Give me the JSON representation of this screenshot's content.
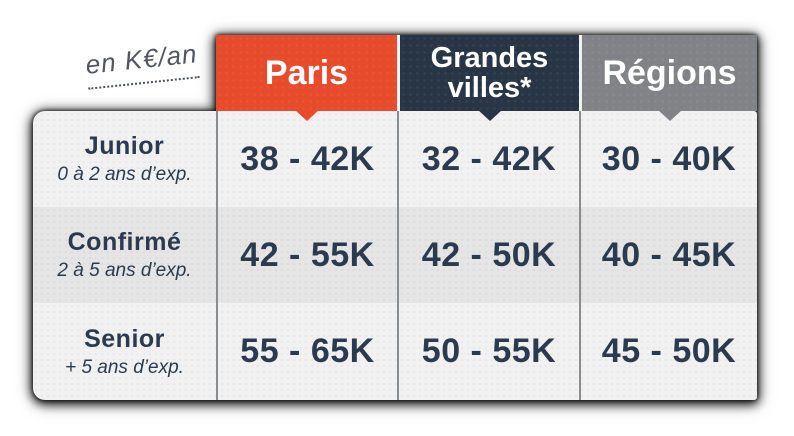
{
  "chart_data": {
    "type": "table",
    "unit_note": "en K€/an",
    "columns": [
      {
        "label": "Paris",
        "color": "#e74b2b"
      },
      {
        "label": "Grandes villes*",
        "color": "#283545"
      },
      {
        "label": "Régions",
        "color": "#818285"
      }
    ],
    "rows": [
      {
        "level": "Junior",
        "experience": "0 à 2 ans d’exp.",
        "values": [
          "38 - 42K",
          "32 - 42K",
          "30 - 40K"
        ]
      },
      {
        "level": "Confirmé",
        "experience": "2 à 5 ans d’exp.",
        "values": [
          "42 - 55K",
          "42 - 50K",
          "40 - 45K"
        ]
      },
      {
        "level": "Senior",
        "experience": "+ 5 ans d’exp.",
        "values": [
          "55 - 65K",
          "50 - 55K",
          "45 - 50K"
        ]
      }
    ],
    "colors": {
      "text": "#2b3b4d",
      "header_text": "#ffffff",
      "row_light": "#f1f1f2",
      "row_alt": "#e5e5e6",
      "divider": "#8a8d90"
    }
  }
}
